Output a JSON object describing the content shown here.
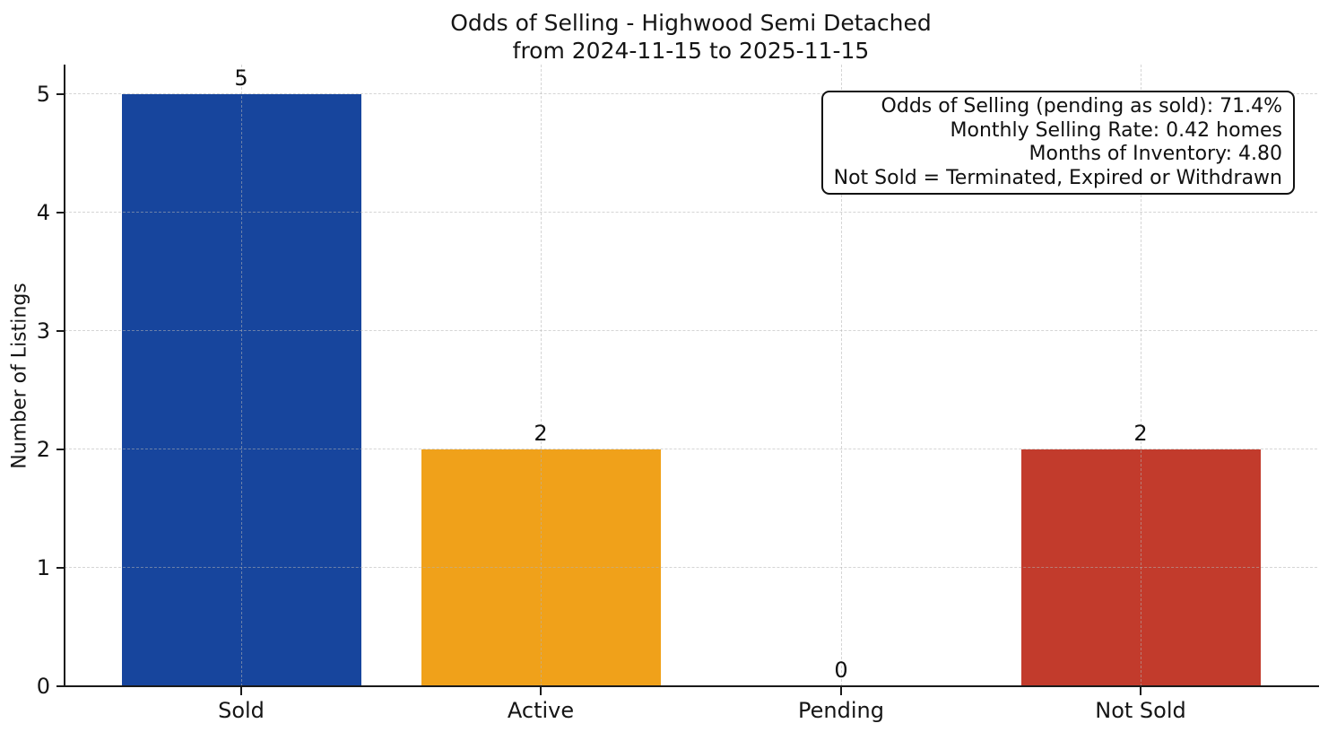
{
  "title": {
    "line1": "Odds of Selling - Highwood Semi Detached",
    "line2": "from 2024-11-15 to 2025-11-15"
  },
  "chart_data": {
    "type": "bar",
    "title": "Odds of Selling - Highwood Semi Detached\nfrom 2024-11-15 to 2025-11-15",
    "xlabel": "",
    "ylabel": "Number of Listings",
    "categories": [
      "Sold",
      "Active",
      "Pending",
      "Not Sold"
    ],
    "values": [
      5,
      2,
      0,
      2
    ],
    "value_labels": [
      "5",
      "2",
      "0",
      "2"
    ],
    "bar_colors": [
      "#17459d",
      "#f0a11a",
      null,
      "#c23b2c"
    ],
    "ylim": [
      0,
      5.25
    ],
    "yticks": [
      0,
      1,
      2,
      3,
      4,
      5
    ],
    "grid": "dashed, both horizontal and vertical, drawn above bars",
    "legend_position": "none",
    "axis_color": "#1a1a1a",
    "annotation": {
      "lines": [
        "Odds of Selling (pending as sold): 71.4%",
        "Monthly Selling Rate: 0.42 homes",
        "Months of Inventory: 4.80",
        "Not Sold = Terminated, Expired or Withdrawn"
      ]
    }
  }
}
